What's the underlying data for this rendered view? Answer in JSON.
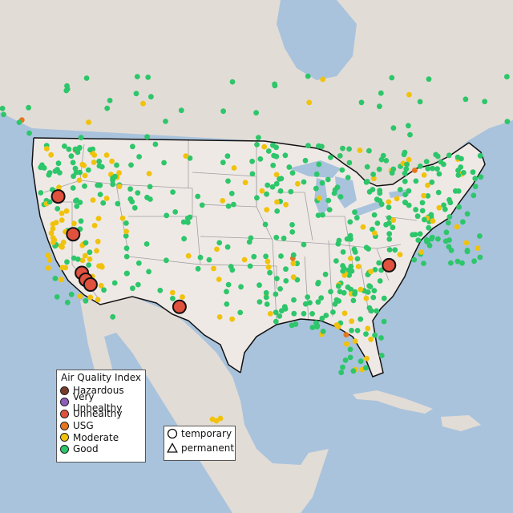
{
  "map": {
    "colors": {
      "ocean": "#a9c3dc",
      "land_us": "#efe9e6",
      "land_other": "#e2dcd6",
      "border": "#111111",
      "state_line": "#a0a0a0"
    }
  },
  "legend": {
    "title": "Air Quality Index",
    "items": [
      {
        "label": "Hazardous",
        "color": "#7a3b2a"
      },
      {
        "label": "Very Unhealthy",
        "color": "#8e5fb8"
      },
      {
        "label": "Unhealthy",
        "color": "#e0513e"
      },
      {
        "label": "USG",
        "color": "#e6761c"
      },
      {
        "label": "Moderate",
        "color": "#f0c20c"
      },
      {
        "label": "Good",
        "color": "#2dc66a"
      }
    ],
    "site_types": [
      {
        "label": "temporary",
        "shape": "circle-icon"
      },
      {
        "label": "permanent",
        "shape": "triangle-icon"
      }
    ]
  },
  "stations": {
    "unhealthy_large": [
      {
        "lon": -121.9,
        "lat": 43.2
      },
      {
        "lon": -120.0,
        "lat": 39.3
      },
      {
        "lon": -118.9,
        "lat": 35.3
      },
      {
        "lon": -118.4,
        "lat": 34.6
      },
      {
        "lon": -117.8,
        "lat": 34.1
      },
      {
        "lon": -106.5,
        "lat": 31.8
      },
      {
        "lon": -79.9,
        "lat": 36.1
      }
    ]
  }
}
